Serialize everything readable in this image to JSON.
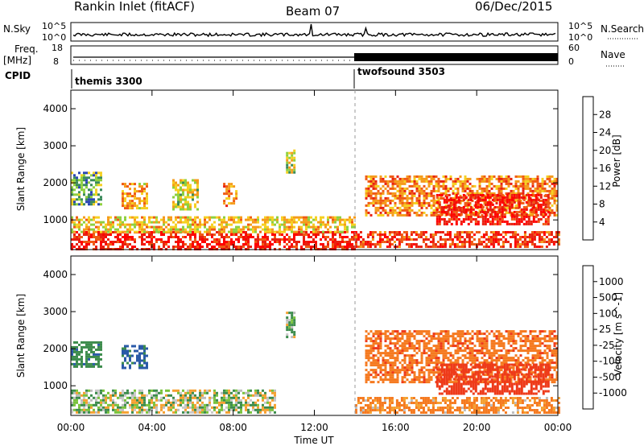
{
  "header": {
    "title": "Rankin Inlet (fitACF)",
    "beam": "Beam 07",
    "date": "06/Dec/2015"
  },
  "panels": {
    "nsky_label": "N.Sky",
    "nsky_ticks": [
      "10^5",
      "10^0"
    ],
    "nsearch_label": "N.Search",
    "nsearch_ticks": [
      "10^5",
      "10^0"
    ],
    "freq_label": "Freq.",
    "freq_unit": "[MHz]",
    "freq_ticks": [
      "18",
      "8"
    ],
    "nave_label": "Nave",
    "nave_ticks": [
      "60",
      "0"
    ],
    "cpid_label": "CPID",
    "cpid_segments": [
      {
        "name": "themis 3300",
        "start_hour": 0,
        "end_hour": 14
      },
      {
        "name": "twofsound 3503",
        "start_hour": 14,
        "end_hour": 24
      }
    ]
  },
  "colors": {
    "power_scale": [
      "#0000ff",
      "#2b46b4",
      "#3a8a5a",
      "#8ed03e",
      "#f5d020",
      "#f59b1a",
      "#f05a14",
      "#e82010",
      "#ff0000"
    ],
    "velocity_scale": [
      "#ff0000",
      "#ee3a1a",
      "#f57a20",
      "#f5a030",
      "#bdbdbd",
      "#c9c9c9",
      "#79c23c",
      "#3c8c4c",
      "#2a5aa8",
      "#2020d0"
    ]
  },
  "chart_data": [
    {
      "type": "heatmap",
      "title": "",
      "xlabel": "Time UT",
      "ylabel": "Slant Range [km]",
      "x_ticks": [
        "00:00",
        "04:00",
        "08:00",
        "12:00",
        "16:00",
        "20:00",
        "00:00"
      ],
      "xlim_hours": [
        0,
        24
      ],
      "y_ticks": [
        1000,
        2000,
        3000,
        4000
      ],
      "ylim": [
        200,
        4500
      ],
      "colorbar": {
        "label": "Power [dB]",
        "ticks": [
          4,
          8,
          12,
          16,
          20,
          24,
          28
        ],
        "range": [
          0,
          30
        ]
      },
      "regions": [
        {
          "t0": 0.0,
          "t1": 14.0,
          "r0": 200,
          "r1": 700,
          "value": 26
        },
        {
          "t0": 0.0,
          "t1": 14.0,
          "r0": 700,
          "r1": 1100,
          "value": 16
        },
        {
          "t0": 0.0,
          "t1": 1.5,
          "r0": 1400,
          "r1": 2300,
          "value": 10
        },
        {
          "t0": 2.5,
          "t1": 3.8,
          "r0": 1300,
          "r1": 2000,
          "value": 18
        },
        {
          "t0": 5.0,
          "t1": 6.2,
          "r0": 1300,
          "r1": 2100,
          "value": 14
        },
        {
          "t0": 7.5,
          "t1": 8.1,
          "r0": 1400,
          "r1": 2000,
          "value": 20
        },
        {
          "t0": 10.6,
          "t1": 11.0,
          "r0": 2300,
          "r1": 2900,
          "value": 14
        },
        {
          "t0": 14.5,
          "t1": 24.0,
          "r0": 1100,
          "r1": 2200,
          "value": 20
        },
        {
          "t0": 18.0,
          "t1": 23.5,
          "r0": 900,
          "r1": 1700,
          "value": 26
        },
        {
          "t0": 14.0,
          "t1": 24.0,
          "r0": 250,
          "r1": 700,
          "value": 24
        }
      ]
    },
    {
      "type": "heatmap",
      "title": "",
      "xlabel": "Time UT",
      "ylabel": "Slant Range [km]",
      "x_ticks": [
        "00:00",
        "04:00",
        "08:00",
        "12:00",
        "16:00",
        "20:00",
        "00:00"
      ],
      "xlim_hours": [
        0,
        24
      ],
      "y_ticks": [
        1000,
        2000,
        3000,
        4000
      ],
      "ylim": [
        200,
        4500
      ],
      "colorbar": {
        "label": "Velocity [m s^-1]",
        "ticks": [
          1000,
          500,
          100,
          25,
          -25,
          -100,
          -500,
          -1000
        ]
      },
      "regions": [
        {
          "t0": 0.0,
          "t1": 10.0,
          "r0": 250,
          "r1": 900,
          "value": 50
        },
        {
          "t0": 0.0,
          "t1": 1.5,
          "r0": 1500,
          "r1": 2200,
          "value": 400
        },
        {
          "t0": 2.5,
          "t1": 3.8,
          "r0": 1500,
          "r1": 2100,
          "value": 600
        },
        {
          "t0": 10.6,
          "t1": 11.0,
          "r0": 2300,
          "r1": 3000,
          "value": 100
        },
        {
          "t0": 14.5,
          "t1": 24.0,
          "r0": 1100,
          "r1": 2500,
          "value": -400
        },
        {
          "t0": 18.0,
          "t1": 23.5,
          "r0": 800,
          "r1": 1600,
          "value": -800
        },
        {
          "t0": 14.0,
          "t1": 24.0,
          "r0": 250,
          "r1": 700,
          "value": -150
        }
      ]
    }
  ]
}
